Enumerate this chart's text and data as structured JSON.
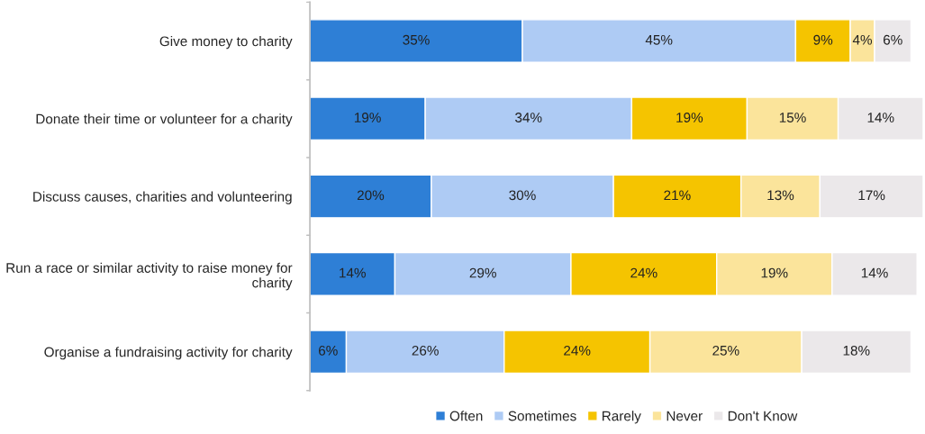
{
  "chart_data": {
    "type": "bar",
    "orientation": "horizontal",
    "stacked": true,
    "legend": "bottom",
    "grid": false,
    "tick_labels": "y",
    "xlim": [
      0,
      101
    ],
    "categories": [
      "Give money to charity",
      "Donate their time or volunteer for a charity",
      "Discuss causes, charities and volunteering",
      "Run a race or similar activity to raise money for charity",
      "Organise a fundraising activity for charity"
    ],
    "series": [
      {
        "name": "Often",
        "color": "#2e7fd6",
        "values": [
          35,
          19,
          20,
          14,
          6
        ],
        "value_labels": [
          "35%",
          "19%",
          "20%",
          "14%",
          "6%"
        ]
      },
      {
        "name": "Sometimes",
        "color": "#aecbf4",
        "values": [
          45,
          34,
          30,
          29,
          26
        ],
        "value_labels": [
          "45%",
          "34%",
          "30%",
          "29%",
          "26%"
        ]
      },
      {
        "name": "Rarely",
        "color": "#f5c400",
        "values": [
          9,
          19,
          21,
          24,
          24
        ],
        "value_labels": [
          "9%",
          "19%",
          "21%",
          "24%",
          "24%"
        ]
      },
      {
        "name": "Never",
        "color": "#fbe49b",
        "values": [
          4,
          15,
          13,
          19,
          25
        ],
        "value_labels": [
          "4%",
          "15%",
          "13%",
          "19%",
          "25%"
        ]
      },
      {
        "name": "Don't Know",
        "color": "#ebe8ea",
        "values": [
          6,
          14,
          17,
          14,
          18
        ],
        "value_labels": [
          "6%",
          "14%",
          "17%",
          "14%",
          "18%"
        ]
      }
    ]
  }
}
